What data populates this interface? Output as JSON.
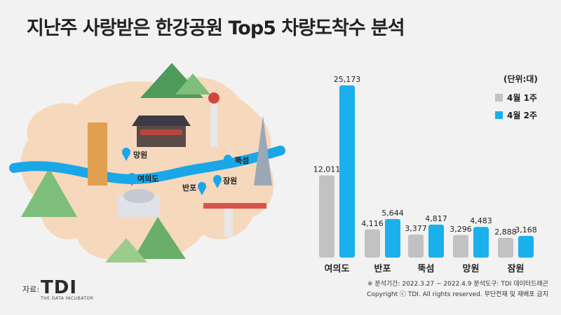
{
  "title": "지난주 사랑받은 한강공원 Top5 차량도착수 분석",
  "map_labels": {
    "mangwon": "망원",
    "yeouido": "여의도",
    "ttukseom": "뚝섬",
    "banpo": "반포",
    "jamwon": "잠원"
  },
  "legend": {
    "unit": "(단위:대)",
    "series1": "4월 1주",
    "series2": "4월 2주"
  },
  "colors": {
    "series1": "#c2c2c2",
    "series2": "#1ab0ec",
    "river": "#1aa7e8",
    "land": "#f6d8bc"
  },
  "chart_data": {
    "type": "bar",
    "categories": [
      "여의도",
      "반포",
      "뚝섬",
      "망원",
      "잠원"
    ],
    "series": [
      {
        "name": "4월 1주",
        "values": [
          12011,
          4116,
          3377,
          3296,
          2888
        ],
        "labels": [
          "12,011",
          "4,116",
          "3,377",
          "3,296",
          "2,888"
        ]
      },
      {
        "name": "4월 2주",
        "values": [
          25173,
          5644,
          4817,
          4483,
          3168
        ],
        "labels": [
          "25,173",
          "5,644",
          "4,817",
          "4,483",
          "3,168"
        ]
      }
    ],
    "ylim": [
      0,
      25173
    ],
    "legend": "top-right"
  },
  "footer": {
    "note": "※ 분석기간: 2022.3.27 ~ 2022.4.9  분석도구: TDI 데이터드래곤",
    "copyright": "Copyright ⓒ TDI. All rights reserved. 무단전재 및 재배포 금지"
  },
  "source_label": "자료:",
  "logo": {
    "text": "TDI",
    "subtitle": "THE DATA INCUBATOR"
  }
}
